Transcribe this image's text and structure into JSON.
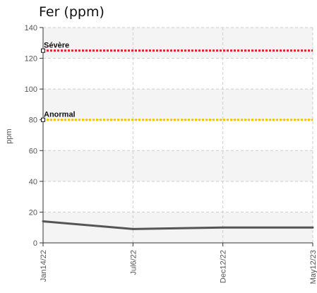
{
  "chart_data": {
    "type": "line",
    "title": "Fer (ppm)",
    "ylabel": "ppm",
    "xlabel": "",
    "ylim": [
      0,
      140
    ],
    "yticks": [
      0,
      20,
      40,
      60,
      80,
      100,
      120,
      140
    ],
    "categories": [
      "Jan14/22",
      "Jul6/22",
      "Dec12/22",
      "May12/23"
    ],
    "series": [
      {
        "values": [
          14,
          9,
          10,
          10
        ],
        "color": "#555555"
      }
    ],
    "reference_lines": [
      {
        "label": "Sévère",
        "value": 125,
        "color": "#e8202a"
      },
      {
        "label": "Anormal",
        "value": 80,
        "color": "#f5c400"
      }
    ],
    "grid": true,
    "legend": "none"
  }
}
